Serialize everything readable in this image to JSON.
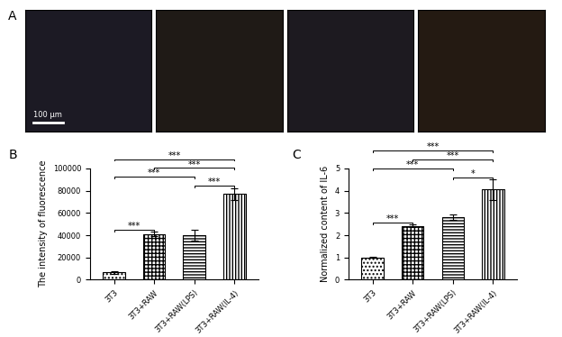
{
  "panel_labels": [
    "A",
    "B",
    "C"
  ],
  "images": {
    "scale_bar_label": "100 μm"
  },
  "chart_data": [
    {
      "type": "bar",
      "categories": [
        "3T3",
        "3T3+RAW",
        "3T3+RAW(LPS)",
        "3T3+RAW(IL-4)"
      ],
      "values": [
        6500,
        41000,
        40000,
        77000
      ],
      "errors": [
        1500,
        2000,
        5000,
        5500
      ],
      "color": "#ffffff",
      "y_label": "The intensity of fluorescence",
      "ylim": [
        0,
        100000
      ],
      "yticks": [
        0,
        20000,
        40000,
        60000,
        80000,
        100000
      ],
      "comparisons": [
        {
          "pair": [
            "3T3",
            "3T3+RAW(IL-4)"
          ],
          "label": "***"
        },
        {
          "pair": [
            "3T3+RAW",
            "3T3+RAW(IL-4)"
          ],
          "label": "***"
        },
        {
          "pair": [
            "3T3+RAW(LPS)",
            "3T3+RAW(IL-4)"
          ],
          "label": "***"
        },
        {
          "pair": [
            "3T3",
            "3T3+RAW"
          ],
          "label": "***"
        },
        {
          "pair": [
            "3T3",
            "3T3+RAW(LPS)"
          ],
          "label": "***"
        }
      ]
    },
    {
      "type": "bar",
      "categories": [
        "3T3",
        "3T3+RAW",
        "3T3+RAW(LPS)",
        "3T3+RAW(IL-4)"
      ],
      "values": [
        1.0,
        2.42,
        2.82,
        4.05
      ],
      "errors": [
        0.02,
        0.05,
        0.12,
        0.45
      ],
      "color": "#ffffff",
      "y_label": "Normalized content of IL-6",
      "ylim": [
        0,
        5
      ],
      "yticks": [
        0,
        1,
        2,
        3,
        4,
        5
      ],
      "comparisons": [
        {
          "pair": [
            "3T3",
            "3T3+RAW(IL-4)"
          ],
          "label": "***"
        },
        {
          "pair": [
            "3T3+RAW",
            "3T3+RAW(IL-4)"
          ],
          "label": "***"
        },
        {
          "pair": [
            "3T3+RAW(LPS)",
            "3T3+RAW(IL-4)"
          ],
          "label": "*"
        },
        {
          "pair": [
            "3T3",
            "3T3+RAW"
          ],
          "label": "***"
        },
        {
          "pair": [
            "3T3",
            "3T3+RAW(LPS)"
          ],
          "label": "***"
        }
      ]
    }
  ]
}
